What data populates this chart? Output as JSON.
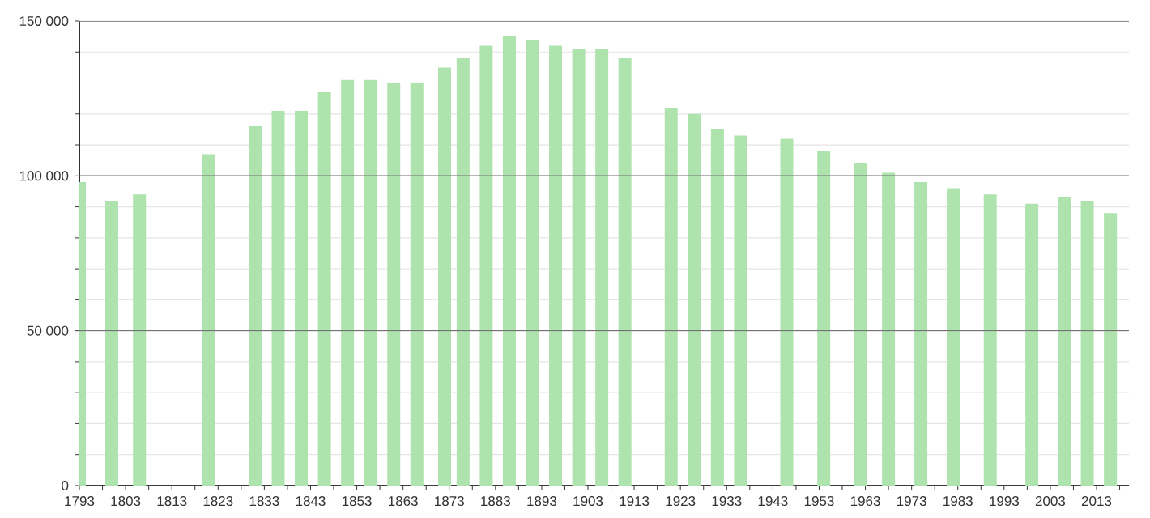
{
  "chart_data": {
    "type": "bar",
    "color": "#aee3ae",
    "x": [
      1793,
      1800,
      1806,
      1821,
      1831,
      1836,
      1841,
      1846,
      1851,
      1856,
      1861,
      1866,
      1872,
      1876,
      1881,
      1886,
      1891,
      1896,
      1901,
      1906,
      1911,
      1921,
      1926,
      1931,
      1936,
      1946,
      1954,
      1962,
      1968,
      1975,
      1982,
      1990,
      1999,
      2006,
      2011,
      2016
    ],
    "values": [
      98000,
      92000,
      94000,
      107000,
      116000,
      121000,
      121000,
      127000,
      131000,
      131000,
      130000,
      130000,
      135000,
      138000,
      142000,
      145000,
      144000,
      142000,
      141000,
      141000,
      138000,
      122000,
      120000,
      115000,
      113000,
      112000,
      108000,
      104000,
      101000,
      98000,
      96000,
      94000,
      91000,
      93000,
      92000,
      88000
    ],
    "xlim": [
      1793,
      2020
    ],
    "xticks": [
      1793,
      {
        "value": 1798,
        "label": null
      },
      1803,
      {
        "value": 1808,
        "label": null
      },
      1813,
      {
        "value": 1818,
        "label": null
      },
      1823,
      {
        "value": 1828,
        "label": null
      },
      1833,
      {
        "value": 1838,
        "label": null
      },
      1843,
      {
        "value": 1848,
        "label": null
      },
      1853,
      {
        "value": 1858,
        "label": null
      },
      1863,
      {
        "value": 1868,
        "label": null
      },
      1873,
      {
        "value": 1878,
        "label": null
      },
      1883,
      {
        "value": 1888,
        "label": null
      },
      1893,
      {
        "value": 1898,
        "label": null
      },
      1903,
      {
        "value": 1908,
        "label": null
      },
      1913,
      {
        "value": 1918,
        "label": null
      },
      1923,
      {
        "value": 1928,
        "label": null
      },
      1933,
      {
        "value": 1938,
        "label": null
      },
      1943,
      {
        "value": 1948,
        "label": null
      },
      1953,
      {
        "value": 1958,
        "label": null
      },
      1963,
      {
        "value": 1968,
        "label": null
      },
      1973,
      {
        "value": 1978,
        "label": null
      },
      1983,
      {
        "value": 1988,
        "label": null
      },
      1993,
      {
        "value": 1998,
        "label": null
      },
      2003,
      {
        "value": 2008,
        "label": null
      },
      2013,
      {
        "value": 2018,
        "label": null
      }
    ],
    "ylim": [
      0,
      150000
    ],
    "yticks": [
      {
        "value": 0,
        "label": "0"
      },
      {
        "value": 10000,
        "label": null
      },
      {
        "value": 20000,
        "label": null
      },
      {
        "value": 30000,
        "label": null
      },
      {
        "value": 40000,
        "label": null
      },
      {
        "value": 50000,
        "label": "50 000"
      },
      {
        "value": 60000,
        "label": null
      },
      {
        "value": 70000,
        "label": null
      },
      {
        "value": 80000,
        "label": null
      },
      {
        "value": 90000,
        "label": null
      },
      {
        "value": 100000,
        "label": "100 000"
      },
      {
        "value": 110000,
        "label": null
      },
      {
        "value": 120000,
        "label": null
      },
      {
        "value": 130000,
        "label": null
      },
      {
        "value": 140000,
        "label": null
      },
      {
        "value": 150000,
        "label": "150 000"
      }
    ],
    "grid": "y"
  }
}
